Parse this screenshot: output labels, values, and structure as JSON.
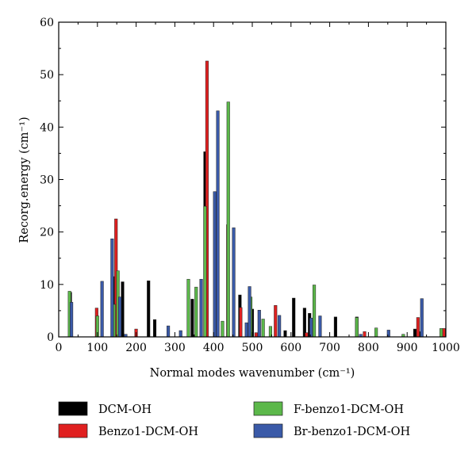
{
  "chart_data": {
    "type": "bar",
    "xlabel": "Normal modes wavenumber (cm⁻¹)",
    "ylabel": "Recorg.energy (cm⁻¹)",
    "xlim": [
      0,
      1000
    ],
    "ylim": [
      0,
      60
    ],
    "x_ticks": [
      0,
      100,
      200,
      300,
      400,
      500,
      600,
      700,
      800,
      900,
      1000
    ],
    "y_ticks": [
      0,
      10,
      20,
      30,
      40,
      50,
      60
    ],
    "grid": false,
    "legend_position": "below",
    "series": [
      {
        "name": "DCM-OH",
        "color": "#000000",
        "points": [
          [
            30,
            8.5
          ],
          [
            140,
            11.5
          ],
          [
            165,
            10.5
          ],
          [
            232,
            10.7
          ],
          [
            248,
            3.3
          ],
          [
            345,
            7.2
          ],
          [
            378,
            35.3
          ],
          [
            468,
            8.0
          ],
          [
            500,
            5.3
          ],
          [
            585,
            1.2
          ],
          [
            607,
            7.4
          ],
          [
            635,
            5.5
          ],
          [
            648,
            4.5
          ],
          [
            715,
            3.8
          ],
          [
            770,
            3.8
          ],
          [
            920,
            1.5
          ],
          [
            930,
            1.0
          ]
        ]
      },
      {
        "name": "Benzo1-DCM-OH",
        "color": "#e02020",
        "points": [
          [
            98,
            5.5
          ],
          [
            148,
            22.5
          ],
          [
            200,
            1.5
          ],
          [
            383,
            52.6
          ],
          [
            437,
            21.4
          ],
          [
            470,
            5.6
          ],
          [
            510,
            0.8
          ],
          [
            560,
            6.0
          ],
          [
            640,
            0.8
          ],
          [
            790,
            1.0
          ],
          [
            928,
            3.7
          ],
          [
            995,
            1.6
          ]
        ]
      },
      {
        "name": "F-benzo1-DCM-OH",
        "color": "#5cb84a",
        "points": [
          [
            28,
            8.7
          ],
          [
            100,
            4.0
          ],
          [
            143,
            6.2
          ],
          [
            153,
            12.6
          ],
          [
            335,
            11.0
          ],
          [
            355,
            9.5
          ],
          [
            378,
            24.9
          ],
          [
            423,
            3.0
          ],
          [
            438,
            44.8
          ],
          [
            496,
            7.6
          ],
          [
            528,
            3.4
          ],
          [
            547,
            2.0
          ],
          [
            660,
            9.9
          ],
          [
            770,
            3.7
          ],
          [
            820,
            1.7
          ],
          [
            890,
            0.5
          ],
          [
            988,
            1.6
          ]
        ]
      },
      {
        "name": "Br-benzo1-DCM-OH",
        "color": "#3a5aa8",
        "points": [
          [
            33,
            6.6
          ],
          [
            112,
            10.6
          ],
          [
            138,
            18.7
          ],
          [
            158,
            7.6
          ],
          [
            173,
            0.5
          ],
          [
            283,
            2.1
          ],
          [
            315,
            1.2
          ],
          [
            368,
            11.0
          ],
          [
            403,
            27.7
          ],
          [
            411,
            43.1
          ],
          [
            452,
            20.8
          ],
          [
            485,
            2.7
          ],
          [
            493,
            9.6
          ],
          [
            518,
            5.1
          ],
          [
            570,
            4.1
          ],
          [
            652,
            3.6
          ],
          [
            675,
            4.0
          ],
          [
            780,
            0.5
          ],
          [
            852,
            1.3
          ],
          [
            938,
            7.3
          ]
        ]
      }
    ]
  }
}
